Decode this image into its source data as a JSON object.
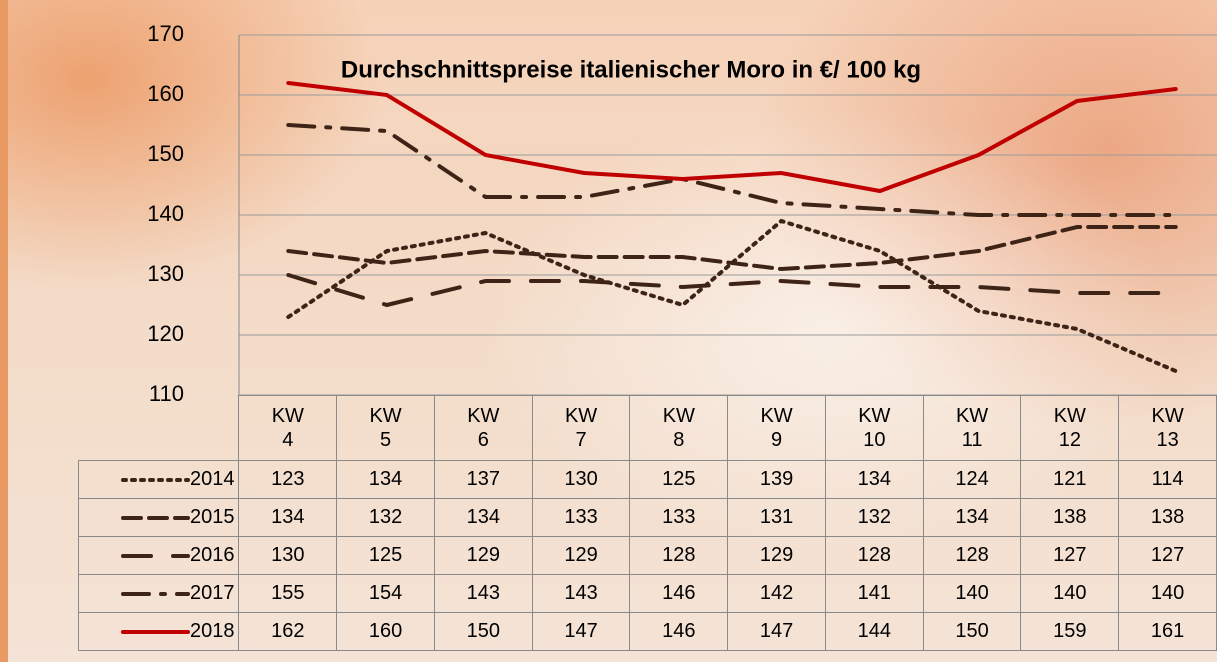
{
  "chart_data": {
    "type": "line",
    "title": "Durchschnittspreise italienischer Moro in €/ 100 kg",
    "categories": [
      "KW 4",
      "KW 5",
      "KW 6",
      "KW 7",
      "KW 8",
      "KW 9",
      "KW 10",
      "KW 11",
      "KW 12",
      "KW 13"
    ],
    "ylim": [
      110,
      170
    ],
    "yticks": [
      110,
      120,
      130,
      140,
      150,
      160,
      170
    ],
    "grid": true,
    "series": [
      {
        "name": "2014",
        "color": "#3d2416",
        "dash": "dotted",
        "values": [
          123,
          134,
          137,
          130,
          125,
          139,
          134,
          124,
          121,
          114
        ]
      },
      {
        "name": "2015",
        "color": "#3d2416",
        "dash": "dashed",
        "values": [
          134,
          132,
          134,
          133,
          133,
          131,
          132,
          134,
          138,
          138
        ]
      },
      {
        "name": "2016",
        "color": "#3d2416",
        "dash": "long-dashed",
        "values": [
          130,
          125,
          129,
          129,
          128,
          129,
          128,
          128,
          127,
          127
        ]
      },
      {
        "name": "2017",
        "color": "#3d2416",
        "dash": "dash-dot",
        "values": [
          155,
          154,
          143,
          143,
          146,
          142,
          141,
          140,
          140,
          140
        ]
      },
      {
        "name": "2018",
        "color": "#c00000",
        "dash": "solid",
        "values": [
          162,
          160,
          150,
          147,
          146,
          147,
          144,
          150,
          159,
          161
        ]
      }
    ]
  }
}
